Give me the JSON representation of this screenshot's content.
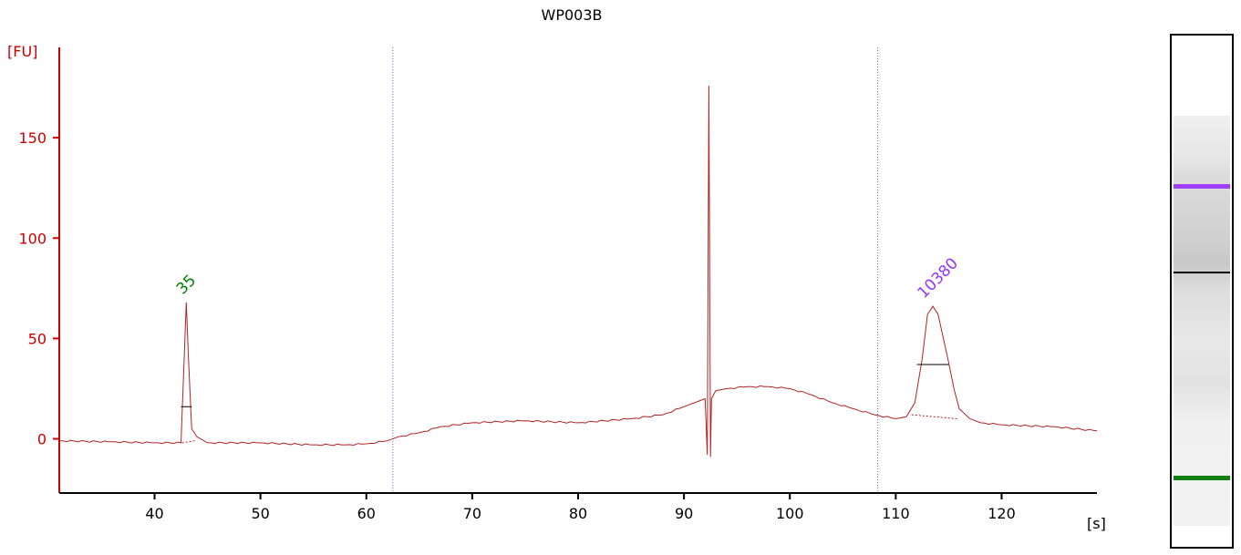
{
  "chart_data": {
    "type": "line",
    "title": "WP003B",
    "ylabel": "[FU]",
    "xlabel": "[s]",
    "xlim": [
      31,
      129
    ],
    "ylim": [
      -27,
      195
    ],
    "x_ticks": [
      40,
      50,
      60,
      70,
      80,
      90,
      100,
      110,
      120
    ],
    "y_ticks": [
      0,
      50,
      100,
      150
    ],
    "grid": false,
    "series": [
      {
        "color": "#b22222",
        "x": [
          31,
          36,
          40,
          42.5,
          42.8,
          43.0,
          43.2,
          43.5,
          44.0,
          45,
          50,
          55,
          58,
          60,
          62,
          63,
          65,
          67,
          70,
          75,
          80,
          85,
          88,
          90,
          91,
          92,
          92.2,
          92.35,
          92.5,
          92.6,
          92.8,
          93,
          94,
          96,
          98,
          100,
          102,
          104,
          106,
          108,
          110,
          111,
          111.8,
          112.5,
          113.0,
          113.5,
          114.0,
          114.5,
          115.0,
          115.5,
          116,
          117,
          118,
          120,
          125,
          129
        ],
        "y": [
          -1,
          -1.5,
          -2,
          -2,
          40,
          68,
          40,
          5,
          1,
          -2,
          -2,
          -3,
          -3,
          -2.5,
          -1,
          1,
          3,
          6,
          8,
          9,
          8,
          10,
          12,
          16,
          18,
          20,
          -8,
          176,
          -9,
          20,
          22,
          24,
          25,
          26,
          26,
          25,
          22,
          18,
          15,
          12,
          10,
          11,
          18,
          40,
          62,
          66,
          62,
          50,
          38,
          25,
          15,
          10,
          8,
          7,
          6,
          4
        ]
      }
    ],
    "peak_labels": [
      {
        "text": "35",
        "x": 43.0,
        "y": 68,
        "color": "#008000"
      },
      {
        "text": "10380",
        "x": 113.0,
        "y": 66,
        "color": "#9933ff"
      }
    ],
    "region_markers_x": [
      62.5,
      108.3
    ],
    "peak_markers": [
      {
        "x1": 42.5,
        "x2": 43.5,
        "y": 16
      },
      {
        "x1": 112.0,
        "x2": 115.0,
        "y": 37
      }
    ],
    "peak_baselines": [
      {
        "x1": 42.6,
        "x2": 43.8,
        "y1": -2,
        "y2": -1
      },
      {
        "x1": 111.5,
        "x2": 115.8,
        "y1": 12,
        "y2": 10
      }
    ]
  },
  "colors": {
    "axis_y": "#cc0000",
    "axis_x": "#000000",
    "trace": "#b22222",
    "marker": "#6666cc",
    "band_upper": "#a040ff",
    "band_middle": "#000000",
    "band_lower": "#108010"
  },
  "gel": {
    "bands": [
      {
        "name": "upper-marker",
        "color": "#a040ff",
        "position": 0.293,
        "thickness": 5
      },
      {
        "name": "center-line",
        "color": "#000000",
        "position": 0.46,
        "thickness": 2
      },
      {
        "name": "lower-marker",
        "color": "#108010",
        "position": 0.86,
        "thickness": 5
      }
    ]
  }
}
